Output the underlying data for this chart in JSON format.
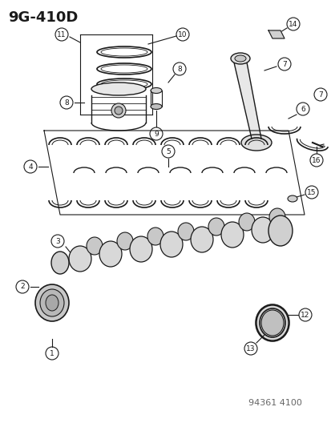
{
  "title": "9G-410D",
  "watermark": "94361 4100",
  "bg_color": "#ffffff",
  "diagram_color": "#1a1a1a",
  "title_fontsize": 13,
  "watermark_fontsize": 8,
  "part_numbers": [
    1,
    2,
    3,
    4,
    5,
    6,
    7,
    8,
    9,
    10,
    11,
    12,
    13,
    14,
    15,
    16
  ],
  "figsize": [
    4.14,
    5.33
  ],
  "dpi": 100
}
